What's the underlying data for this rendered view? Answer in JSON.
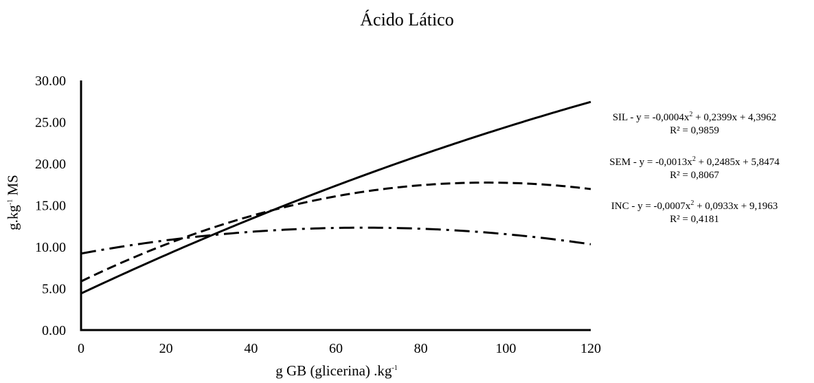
{
  "chart_data": {
    "type": "line",
    "title": "Ácido Lático",
    "xlabel": {
      "base": "g GB (glicerina) .kg",
      "sup": "-1"
    },
    "ylabel": {
      "pre": "g.kg",
      "sup": "-1",
      "post": " MS"
    },
    "xlim": [
      0,
      120
    ],
    "ylim": [
      0,
      30
    ],
    "x_ticks": [
      0,
      20,
      40,
      60,
      80,
      100,
      120
    ],
    "y_ticks": [
      "0.00",
      "5.00",
      "10.00",
      "15.00",
      "20.00",
      "25.00",
      "30.00"
    ],
    "grid": false,
    "series": [
      {
        "name": "SIL",
        "style": "solid",
        "coef": [
          -0.0004,
          0.2399,
          4.3962
        ],
        "x": [
          0,
          20,
          40,
          60,
          80,
          100,
          120
        ],
        "y": [
          4.4,
          9.03,
          13.35,
          17.35,
          21.03,
          24.39,
          27.43
        ],
        "equation": {
          "pre": "SIL - y = -0,0004x",
          "sup": "2",
          "post": " + 0,2399x  + 4,3962"
        },
        "r2": "R² = 0,9859"
      },
      {
        "name": "SEM",
        "style": "dashed",
        "coef": [
          -0.0013,
          0.2485,
          5.8474
        ],
        "x": [
          0,
          20,
          40,
          60,
          80,
          100,
          120
        ],
        "y": [
          5.85,
          10.29,
          13.71,
          16.08,
          17.4,
          17.7,
          16.97
        ],
        "equation": {
          "pre": "SEM - y = -0,0013x",
          "sup": "2",
          "post": " + 0,2485x  + 5,8474"
        },
        "r2": "R² = 0,8067"
      },
      {
        "name": "INC",
        "style": "dashdot",
        "coef": [
          -0.0007,
          0.0933,
          9.1963
        ],
        "x": [
          0,
          20,
          40,
          60,
          80,
          100,
          120
        ],
        "y": [
          9.2,
          10.78,
          11.81,
          12.27,
          12.18,
          11.53,
          10.33
        ],
        "equation": {
          "pre": "INC - y = -0,0007x",
          "sup": "2",
          "post": " + 0,0933x  + 9,1963"
        },
        "r2": "R² = 0,4181"
      }
    ]
  }
}
